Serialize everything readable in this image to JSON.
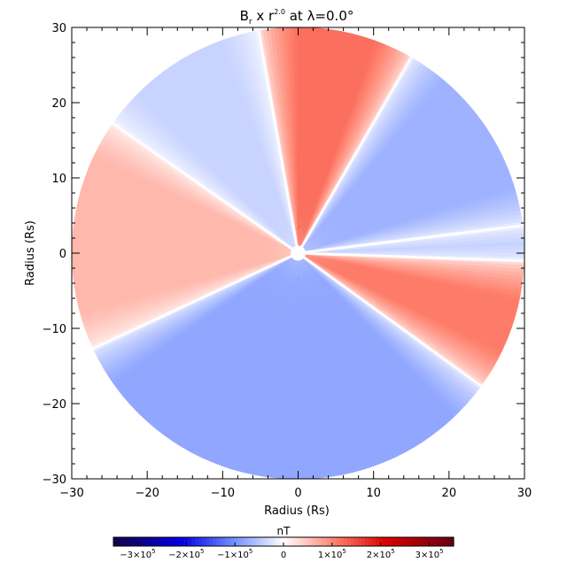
{
  "chart_data": {
    "type": "heatmap",
    "plot_kind": "polar-disk",
    "title": {
      "main": "B",
      "sub": "r",
      "middle": " x r",
      "sup": "2.0",
      "tail": " at λ=0.0°"
    },
    "xlabel": "Radius (Rs)",
    "ylabel": "Radius (Rs)",
    "xlim": [
      -30,
      30
    ],
    "ylim": [
      -30,
      30
    ],
    "x_ticks": [
      -30,
      -20,
      -10,
      0,
      10,
      20,
      30
    ],
    "y_ticks": [
      -30,
      -20,
      -10,
      0,
      10,
      20,
      30
    ],
    "outer_radius": 30,
    "inner_radius": 1,
    "colorbar": {
      "label": "nT",
      "range": [
        -350000,
        350000
      ],
      "ticks": [
        {
          "value": -300000,
          "mant": "−3×10",
          "exp": "5"
        },
        {
          "value": -200000,
          "mant": "−2×10",
          "exp": "5"
        },
        {
          "value": -100000,
          "mant": "−1×10",
          "exp": "5"
        },
        {
          "value": 0,
          "mant": "0",
          "exp": ""
        },
        {
          "value": 100000,
          "mant": "1×10",
          "exp": "5"
        },
        {
          "value": 200000,
          "mant": "2×10",
          "exp": "5"
        },
        {
          "value": 300000,
          "mant": "3×10",
          "exp": "5"
        }
      ]
    },
    "sectors_deg_ccw_from_east": [
      {
        "start": -2,
        "end": 7,
        "value": -60000
      },
      {
        "start": 7,
        "end": 60,
        "value": -70000
      },
      {
        "start": 60,
        "end": 100,
        "value": 120000
      },
      {
        "start": 100,
        "end": 145,
        "value": -40000
      },
      {
        "start": 145,
        "end": 205,
        "value": 60000
      },
      {
        "start": 205,
        "end": 324,
        "value": -80000
      },
      {
        "start": 324,
        "end": 358,
        "value": 110000
      }
    ],
    "neutral_lines_deg": [
      7,
      60,
      100,
      145,
      205,
      324,
      358
    ]
  }
}
